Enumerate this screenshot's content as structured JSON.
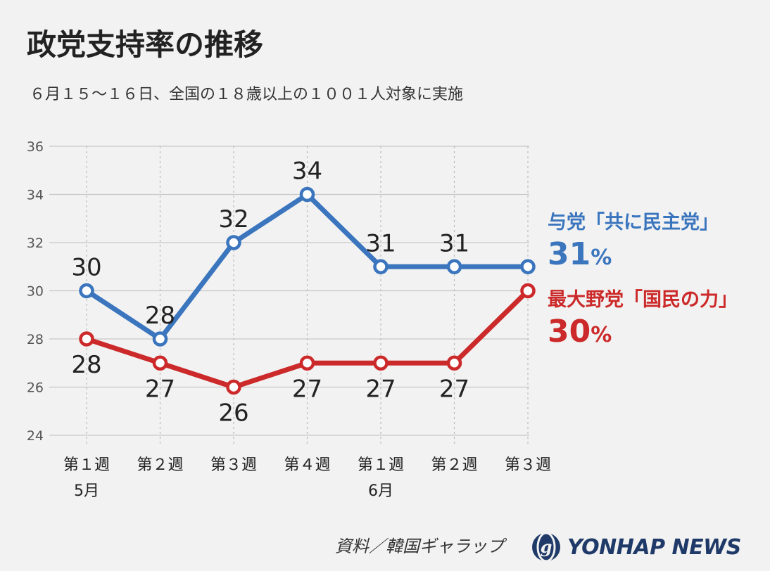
{
  "title": "政党支持率の推移",
  "subtitle": "６月１５～１６日、全国の１８歳以上の１００１人対象に実施",
  "source": "資料／韓国ギャラップ",
  "logo_text": "YONHAP NEWS",
  "chart_data": {
    "type": "line",
    "categories": [
      "第１週",
      "第２週",
      "第３週",
      "第４週",
      "第１週",
      "第２週",
      "第３週"
    ],
    "month_labels": [
      {
        "index": 0,
        "label": "5月"
      },
      {
        "index": 4,
        "label": "6月"
      }
    ],
    "ylim": [
      24,
      36
    ],
    "yticks": [
      24,
      26,
      28,
      30,
      32,
      34,
      36
    ],
    "grid": true,
    "series": [
      {
        "name": "与党「共に民主党」",
        "current": "31",
        "unit": "%",
        "color": "#3a75be",
        "values": [
          30,
          28,
          32,
          34,
          31,
          31,
          31
        ]
      },
      {
        "name": "最大野党「国民の力」",
        "current": "30",
        "unit": "%",
        "color": "#cc2a2a",
        "values": [
          28,
          27,
          26,
          27,
          27,
          27,
          30
        ]
      }
    ]
  }
}
